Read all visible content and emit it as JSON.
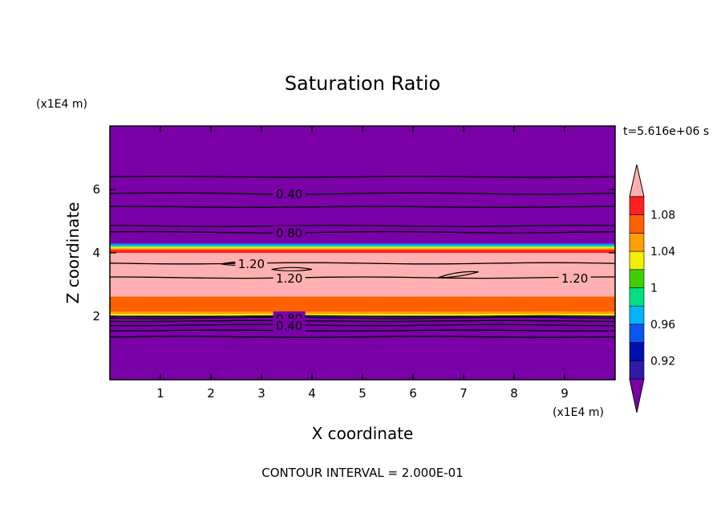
{
  "chart_data": {
    "type": "contour",
    "title": "Saturation Ratio",
    "xlabel": "X coordinate",
    "ylabel": "Z coordinate",
    "x_unit": "(x1E4 m)",
    "y_unit": "(x1E4 m)",
    "time_label": "t=5.616e+06 s",
    "footer": "CONTOUR INTERVAL = 2.000E-01",
    "xlim": [
      0,
      10
    ],
    "ylim": [
      0,
      8
    ],
    "x_ticks": [
      1,
      2,
      3,
      4,
      5,
      6,
      7,
      8,
      9
    ],
    "y_ticks": [
      2,
      4,
      6
    ],
    "colorbar": {
      "levels": [
        0.9,
        0.92,
        0.94,
        0.96,
        0.98,
        1.0,
        1.02,
        1.04,
        1.06,
        1.08,
        1.1
      ],
      "colors": [
        "#7a00a8",
        "#2e1aa8",
        "#0010b0",
        "#0a55f0",
        "#00b4ff",
        "#00e080",
        "#40d000",
        "#f0f000",
        "#ffa000",
        "#ff6000",
        "#ff2020",
        "#ffb0b0"
      ],
      "labels": [
        {
          "value": 0.92,
          "text": "0.92"
        },
        {
          "value": 0.96,
          "text": "0.96"
        },
        {
          "value": 1.0,
          "text": "1"
        },
        {
          "value": 1.04,
          "text": "1.04"
        },
        {
          "value": 1.08,
          "text": "1.08"
        }
      ],
      "extends": "both"
    },
    "bands": [
      {
        "z0": 0.0,
        "z1": 1.98,
        "color": "#7a00a8"
      },
      {
        "z0": 1.98,
        "z1": 2.02,
        "color": "#0010b0"
      },
      {
        "z0": 2.02,
        "z1": 2.07,
        "color": "#f0f000"
      },
      {
        "z0": 2.07,
        "z1": 2.15,
        "color": "#ffa000"
      },
      {
        "z0": 2.15,
        "z1": 2.62,
        "color": "#ff6000"
      },
      {
        "z0": 2.62,
        "z1": 4.0,
        "color": "#ffb0b0"
      },
      {
        "z0": 4.0,
        "z1": 4.1,
        "color": "#ff2020"
      },
      {
        "z0": 4.1,
        "z1": 4.15,
        "color": "#ffa000"
      },
      {
        "z0": 4.15,
        "z1": 4.19,
        "color": "#f0f000"
      },
      {
        "z0": 4.19,
        "z1": 4.22,
        "color": "#00e080"
      },
      {
        "z0": 4.22,
        "z1": 4.26,
        "color": "#00b4ff"
      },
      {
        "z0": 4.26,
        "z1": 4.3,
        "color": "#0a55f0"
      },
      {
        "z0": 4.3,
        "z1": 8.0,
        "color": "#7a00a8"
      }
    ],
    "contours": [
      {
        "level": 0.4,
        "z": 5.87,
        "label": "0.40",
        "label_x": 3.55
      },
      {
        "level": 0.8,
        "z": 4.65,
        "label": "0.80",
        "label_x": 3.55
      },
      {
        "level": 1.2,
        "z": 3.22,
        "label": "1.20",
        "label_x": 3.55
      },
      {
        "level": 1.2,
        "z": 3.22,
        "label": "1.20",
        "label_x": 9.2
      },
      {
        "level": 1.2,
        "z": 3.67,
        "label": "1.20",
        "label_x": 2.8
      },
      {
        "level": 0.8,
        "z": 1.95,
        "label": "0.80",
        "label_x": 3.55
      },
      {
        "level": 0.4,
        "z": 1.72,
        "label": "0.40",
        "label_x": 3.55
      }
    ],
    "extra_contour_levels_z": [
      6.4,
      5.45,
      4.85,
      2.0,
      1.85,
      1.55,
      1.35
    ]
  }
}
